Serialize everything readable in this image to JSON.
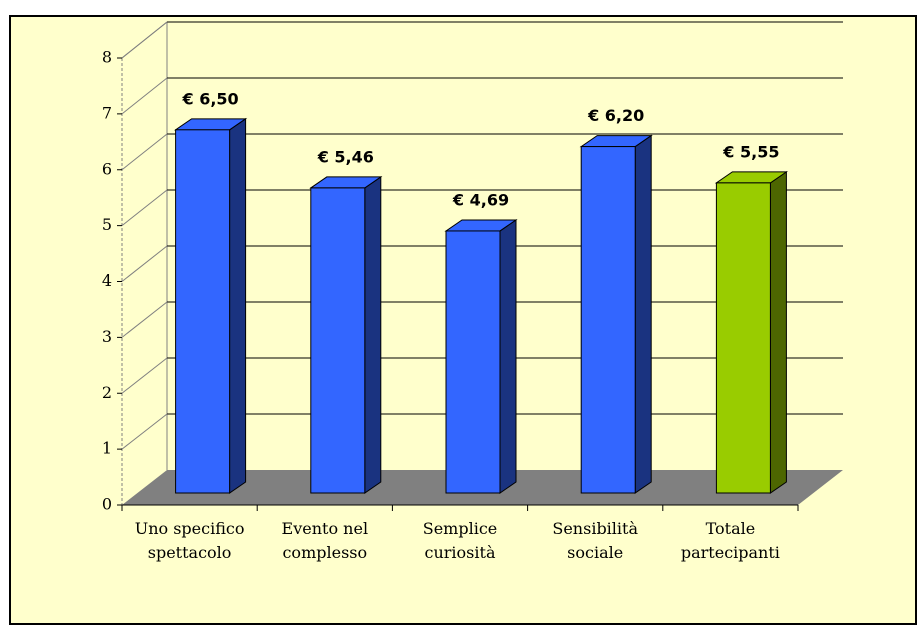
{
  "chart_data": {
    "type": "bar3d",
    "categories": [
      "Uno specifico spettacolo",
      "Evento nel complesso",
      "Semplice curiosità",
      "Sensibilità sociale",
      "Totale partecipanti"
    ],
    "values": [
      6.5,
      5.46,
      4.69,
      6.2,
      5.55
    ],
    "value_labels": [
      "€ 6,50",
      "€ 5,46",
      "€ 4,69",
      "€ 6,20",
      "€ 5,55"
    ],
    "colors": [
      "#3366ff",
      "#3366ff",
      "#3366ff",
      "#3366ff",
      "#99cc00"
    ],
    "ylim": [
      0,
      8
    ],
    "yticks": [
      0,
      1,
      2,
      3,
      4,
      5,
      6,
      7,
      8
    ],
    "grid": true
  }
}
